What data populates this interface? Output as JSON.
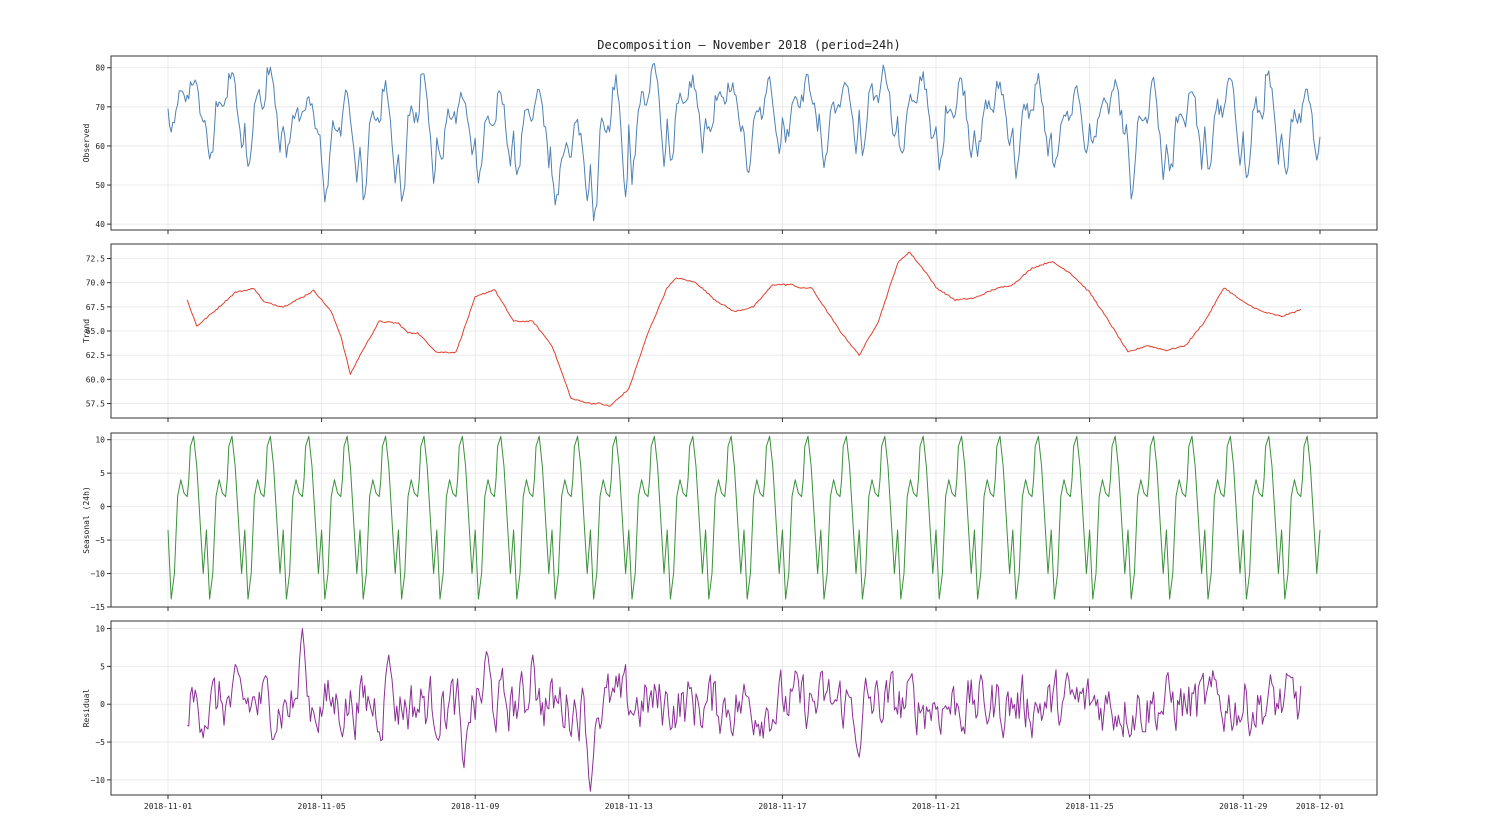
{
  "chart_data": {
    "type": "line",
    "title": "Decomposition — November 2018 (period=24h)",
    "x_ticks": [
      "2018-11-01",
      "2018-11-05",
      "2018-11-09",
      "2018-11-13",
      "2018-11-17",
      "2018-11-21",
      "2018-11-25",
      "2018-11-29",
      "2018-12-01"
    ],
    "x_range": [
      "2018-11-01",
      "2018-12-01"
    ],
    "grid": true,
    "panels": [
      {
        "name": "observed",
        "ylabel": "Observed",
        "color": "#4f81b4",
        "ylim": [
          38.5,
          83
        ],
        "yticks": [
          40,
          50,
          60,
          70,
          80
        ],
        "ytick_labels": [
          "40",
          "50",
          "60",
          "70",
          "80"
        ],
        "daily_min": [
          63,
          55,
          54,
          59,
          45,
          47,
          44,
          56,
          52,
          53,
          44,
          41,
          52,
          57,
          63,
          53,
          62,
          55,
          58,
          57,
          54,
          58,
          53,
          53,
          60,
          47,
          52,
          53,
          51,
          53
        ],
        "daily_max": [
          77,
          79,
          81,
          72,
          74,
          76,
          80,
          73,
          73,
          74,
          66,
          77,
          81,
          77,
          76,
          77,
          77,
          77,
          80,
          78,
          77,
          76,
          77,
          75,
          75,
          76,
          75,
          77,
          78,
          75
        ]
      },
      {
        "name": "trend",
        "ylabel": "Trend",
        "color": "#e0412f",
        "ylim": [
          56,
          74
        ],
        "yticks": [
          57.5,
          60.0,
          62.5,
          65.0,
          67.5,
          70.0,
          72.5
        ],
        "ytick_labels": [
          "57.5",
          "60.0",
          "62.5",
          "65.0",
          "67.5",
          "70.0",
          "72.5"
        ],
        "x_start": "2018-11-01T12:00",
        "x_end": "2018-11-30T12:00",
        "points": [
          [
            0.5,
            68.2
          ],
          [
            0.75,
            65.5
          ],
          [
            1.25,
            67.2
          ],
          [
            1.75,
            69.0
          ],
          [
            2.25,
            69.4
          ],
          [
            2.5,
            68.0
          ],
          [
            3.0,
            67.5
          ],
          [
            3.5,
            68.5
          ],
          [
            3.8,
            69.2
          ],
          [
            4.25,
            67.0
          ],
          [
            4.5,
            64.5
          ],
          [
            4.75,
            60.5
          ],
          [
            5.0,
            62.5
          ],
          [
            5.5,
            66.0
          ],
          [
            6.0,
            65.8
          ],
          [
            6.25,
            64.8
          ],
          [
            6.5,
            64.8
          ],
          [
            7.0,
            62.8
          ],
          [
            7.5,
            62.8
          ],
          [
            8.0,
            68.5
          ],
          [
            8.5,
            69.3
          ],
          [
            9.0,
            66.0
          ],
          [
            9.5,
            66.0
          ],
          [
            10.0,
            63.5
          ],
          [
            10.5,
            58.0
          ],
          [
            11.0,
            57.5
          ],
          [
            11.25,
            57.5
          ],
          [
            11.5,
            57.2
          ],
          [
            12.0,
            59.0
          ],
          [
            12.5,
            64.8
          ],
          [
            13.0,
            69.5
          ],
          [
            13.25,
            70.5
          ],
          [
            13.75,
            70.0
          ],
          [
            14.25,
            68.2
          ],
          [
            14.75,
            67.0
          ],
          [
            15.25,
            67.5
          ],
          [
            15.75,
            69.8
          ],
          [
            16.25,
            69.8
          ],
          [
            16.5,
            69.4
          ],
          [
            16.75,
            69.5
          ],
          [
            17.0,
            68.0
          ],
          [
            17.5,
            65.0
          ],
          [
            18.0,
            62.5
          ],
          [
            18.5,
            66.0
          ],
          [
            19.0,
            72.0
          ],
          [
            19.3,
            73.2
          ],
          [
            19.75,
            71.0
          ],
          [
            20.0,
            69.5
          ],
          [
            20.5,
            68.2
          ],
          [
            21.0,
            68.4
          ],
          [
            21.5,
            69.3
          ],
          [
            22.0,
            69.8
          ],
          [
            22.5,
            71.5
          ],
          [
            23.0,
            72.2
          ],
          [
            23.5,
            71.0
          ],
          [
            24.0,
            69.0
          ],
          [
            24.5,
            66.0
          ],
          [
            25.0,
            62.8
          ],
          [
            25.5,
            63.5
          ],
          [
            26.0,
            63.0
          ],
          [
            26.5,
            63.5
          ],
          [
            27.0,
            66.0
          ],
          [
            27.5,
            69.5
          ],
          [
            28.0,
            68.0
          ],
          [
            28.5,
            67.0
          ],
          [
            29.0,
            66.5
          ],
          [
            29.5,
            67.2
          ],
          [
            30.0,
            66.8
          ]
        ]
      },
      {
        "name": "seasonal",
        "ylabel": "Seasonal (24h)",
        "color": "#3a913a",
        "ylim": [
          -15,
          11
        ],
        "yticks": [
          -15,
          -10,
          -5,
          0,
          5,
          10
        ],
        "ytick_labels": [
          "−15",
          "−10",
          "−5",
          "0",
          "5",
          "10"
        ],
        "period_hours": 24,
        "profile_hour": [
          0,
          2,
          4,
          6,
          8,
          10,
          12,
          13,
          14,
          16,
          18,
          20,
          22,
          24
        ],
        "profile_value": [
          -3.5,
          -13.8,
          -10.0,
          1.5,
          4.0,
          2.0,
          1.5,
          4.0,
          9.0,
          10.5,
          6.0,
          -2.0,
          -10.0,
          -3.5
        ]
      },
      {
        "name": "residual",
        "ylabel": "Residual",
        "color": "#8b2f97",
        "ylim": [
          -12,
          11
        ],
        "yticks": [
          -10,
          -5,
          0,
          5,
          10
        ],
        "ytick_labels": [
          "−10",
          "−5",
          "0",
          "5",
          "10"
        ],
        "x_start": "2018-11-01T12:00",
        "x_end": "2018-11-30T12:00",
        "extremes": [
          [
            3.5,
            10.0
          ],
          [
            11.0,
            -11.5
          ],
          [
            5.75,
            6.5
          ],
          [
            8.3,
            7.0
          ],
          [
            9.5,
            6.5
          ],
          [
            18.0,
            -7.0
          ],
          [
            7.7,
            -8.5
          ]
        ]
      }
    ]
  }
}
